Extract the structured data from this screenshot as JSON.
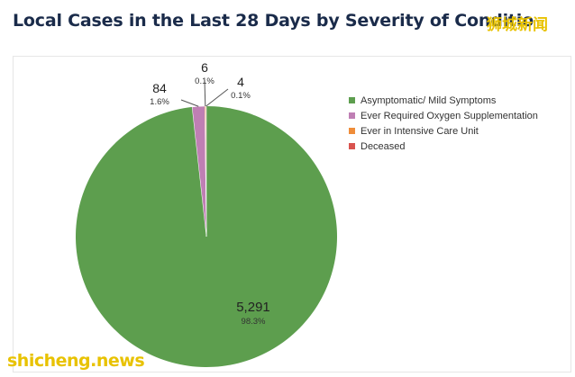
{
  "header": {
    "title": "Local Cases in the Last 28 Days by Severity of Conditio",
    "watermark_cn": "狮城新闻"
  },
  "footer": {
    "watermark": "shicheng.news"
  },
  "chart_data": {
    "type": "pie",
    "categories": [
      "Asymptomatic/ Mild Symptoms",
      "Ever Required Oxygen Supplementation",
      "Ever in Intensive Care Unit",
      "Deceased"
    ],
    "values": [
      5291,
      84,
      6,
      4
    ],
    "value_labels": [
      "5,291",
      "84",
      "6",
      "4"
    ],
    "percent_labels": [
      "98.3%",
      "1.6%",
      "0.1%",
      "0.1%"
    ],
    "colors": [
      "#5d9e4e",
      "#bf7fb4",
      "#ef8d3a",
      "#d9534f"
    ],
    "legend_position": "right",
    "title": "Local Cases in the Last 28 Days by Severity of Conditio"
  }
}
